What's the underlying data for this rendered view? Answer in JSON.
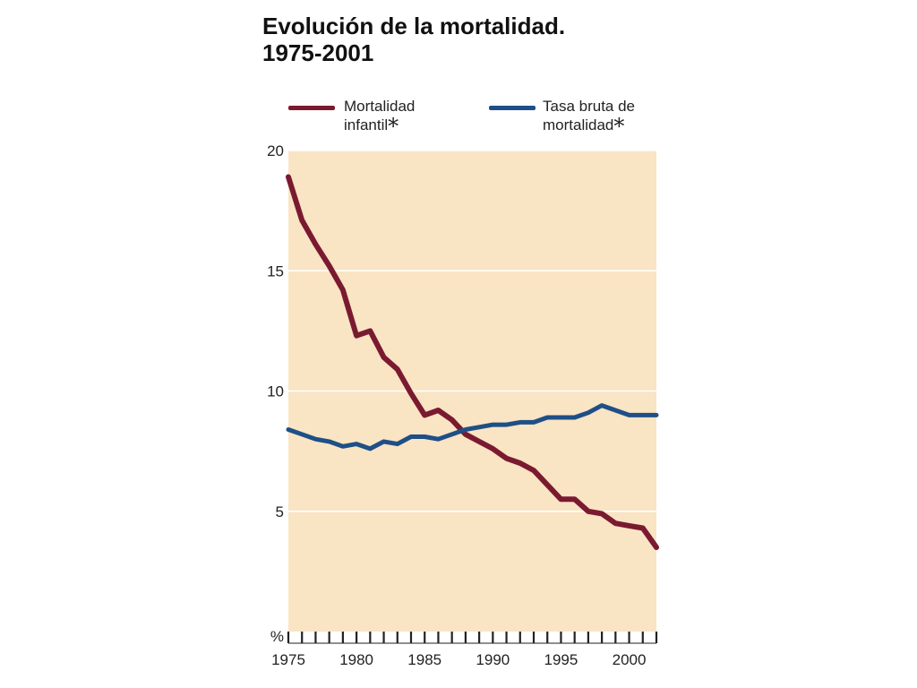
{
  "title": {
    "line1": "Evolución  de la mortalidad.",
    "line2": "1975-2001"
  },
  "legend": [
    {
      "line1": "Mortalidad",
      "line2": "infantil",
      "star": "*",
      "color": "#7a1a30"
    },
    {
      "line1": "Tasa bruta de",
      "line2": "mortalidad",
      "star": "*",
      "color": "#1e4f86"
    }
  ],
  "colors": {
    "plot_bg": "#f9e4c4",
    "grid": "#ffffff",
    "axis": "#222222"
  },
  "chart_data": {
    "type": "line",
    "title": "Evolución  de la mortalidad. 1975-2001",
    "xlabel": "",
    "ylabel": "%",
    "xlim": [
      1975,
      2002
    ],
    "ylim": [
      0,
      20
    ],
    "yticks": [
      5,
      10,
      15,
      20
    ],
    "ytick_labels": [
      "5",
      "10",
      "15",
      "20"
    ],
    "y_origin_label": "%",
    "xticks": [
      1975,
      1980,
      1985,
      1990,
      1995,
      2000
    ],
    "xtick_labels": [
      "1975",
      "1980",
      "1985",
      "1990",
      "1995",
      "2000"
    ],
    "grid": "horizontal",
    "legend_position": "top",
    "series": [
      {
        "name": "Mortalidad infantil*",
        "color": "#7a1a30",
        "x": [
          1975,
          1976,
          1977,
          1978,
          1979,
          1980,
          1981,
          1982,
          1983,
          1984,
          1985,
          1986,
          1987,
          1988,
          1989,
          1990,
          1991,
          1992,
          1993,
          1994,
          1995,
          1996,
          1997,
          1998,
          1999,
          2000,
          2001,
          2002
        ],
        "values": [
          18.9,
          17.1,
          16.1,
          15.2,
          14.2,
          12.3,
          12.5,
          11.4,
          10.9,
          9.9,
          9.0,
          9.2,
          8.8,
          8.2,
          7.9,
          7.6,
          7.2,
          7.0,
          6.7,
          6.1,
          5.5,
          5.5,
          5.0,
          4.9,
          4.5,
          4.4,
          4.3,
          3.5
        ]
      },
      {
        "name": "Tasa bruta de mortalidad*",
        "color": "#1e4f86",
        "x": [
          1975,
          1976,
          1977,
          1978,
          1979,
          1980,
          1981,
          1982,
          1983,
          1984,
          1985,
          1986,
          1987,
          1988,
          1989,
          1990,
          1991,
          1992,
          1993,
          1994,
          1995,
          1996,
          1997,
          1998,
          1999,
          2000,
          2001,
          2002
        ],
        "values": [
          8.4,
          8.2,
          8.0,
          7.9,
          7.7,
          7.8,
          7.6,
          7.9,
          7.8,
          8.1,
          8.1,
          8.0,
          8.2,
          8.4,
          8.5,
          8.6,
          8.6,
          8.7,
          8.7,
          8.9,
          8.9,
          8.9,
          9.1,
          9.4,
          9.2,
          9.0,
          9.0,
          9.0
        ]
      }
    ]
  }
}
